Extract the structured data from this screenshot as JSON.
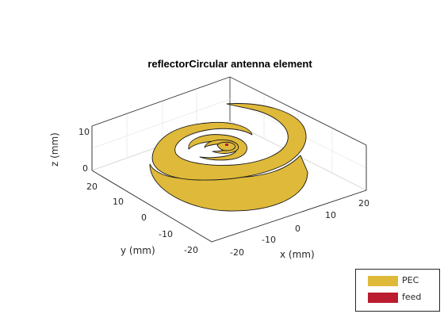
{
  "title": "reflectorCircular antenna element",
  "axes": {
    "xlabel": "x (mm)",
    "ylabel": "y (mm)",
    "zlabel": "z (mm)",
    "x_ticks": [
      "-20",
      "-10",
      "0",
      "10",
      "20"
    ],
    "y_ticks": [
      "20",
      "10",
      "0",
      "-10",
      "-20"
    ],
    "z_ticks": [
      "10",
      "0"
    ]
  },
  "legend": {
    "items": [
      {
        "label": "PEC",
        "color": "#DFB93A"
      },
      {
        "label": "feed",
        "color": "#BA1C30"
      }
    ]
  },
  "colors": {
    "metal": "#DFB93A",
    "feed": "#BA1C30",
    "box_line": "#262626",
    "grid": "#e6e6e6"
  }
}
